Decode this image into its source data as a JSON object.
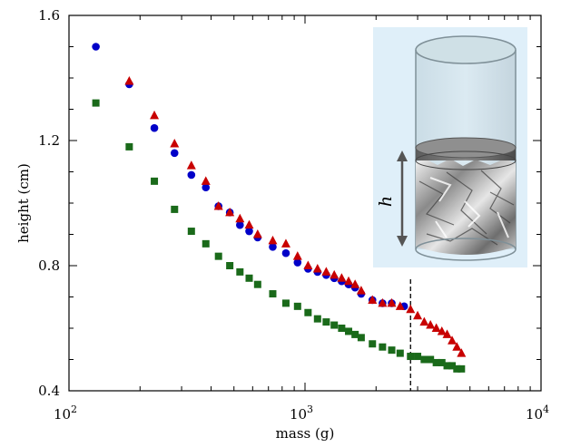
{
  "chart_data": {
    "type": "scatter",
    "xscale": "log",
    "xlim": [
      100,
      10000
    ],
    "ylim": [
      0.4,
      1.6
    ],
    "xlabel": "mass (g)",
    "ylabel": "height (cm)",
    "xticks": [
      100,
      1000,
      10000
    ],
    "xtick_labels": [
      {
        "base": "10",
        "exp": "2"
      },
      {
        "base": "10",
        "exp": "3"
      },
      {
        "base": "10",
        "exp": "4"
      }
    ],
    "yticks": [
      0.4,
      0.8,
      1.2,
      1.6
    ],
    "ytick_labels": [
      "0.4",
      "0.8",
      "1.2",
      "1.6"
    ],
    "vline_x": 2800,
    "series": [
      {
        "marker": "circle",
        "color": "#0000c8",
        "points": [
          [
            130,
            1.5
          ],
          [
            180,
            1.38
          ],
          [
            230,
            1.24
          ],
          [
            280,
            1.16
          ],
          [
            330,
            1.09
          ],
          [
            380,
            1.05
          ],
          [
            430,
            0.99
          ],
          [
            480,
            0.97
          ],
          [
            530,
            0.93
          ],
          [
            580,
            0.91
          ],
          [
            630,
            0.89
          ],
          [
            730,
            0.86
          ],
          [
            830,
            0.84
          ],
          [
            930,
            0.81
          ],
          [
            1030,
            0.79
          ],
          [
            1130,
            0.78
          ],
          [
            1230,
            0.77
          ],
          [
            1330,
            0.76
          ],
          [
            1430,
            0.75
          ],
          [
            1530,
            0.74
          ],
          [
            1630,
            0.73
          ],
          [
            1730,
            0.71
          ],
          [
            1930,
            0.69
          ],
          [
            2130,
            0.68
          ],
          [
            2330,
            0.68
          ],
          [
            2630,
            0.67
          ]
        ]
      },
      {
        "marker": "triangle",
        "color": "#c80000",
        "points": [
          [
            180,
            1.39
          ],
          [
            230,
            1.28
          ],
          [
            280,
            1.19
          ],
          [
            330,
            1.12
          ],
          [
            380,
            1.07
          ],
          [
            430,
            0.99
          ],
          [
            480,
            0.97
          ],
          [
            530,
            0.95
          ],
          [
            580,
            0.93
          ],
          [
            630,
            0.9
          ],
          [
            730,
            0.88
          ],
          [
            830,
            0.87
          ],
          [
            930,
            0.83
          ],
          [
            1030,
            0.8
          ],
          [
            1130,
            0.79
          ],
          [
            1230,
            0.78
          ],
          [
            1330,
            0.77
          ],
          [
            1430,
            0.76
          ],
          [
            1530,
            0.75
          ],
          [
            1630,
            0.74
          ],
          [
            1730,
            0.72
          ],
          [
            1930,
            0.69
          ],
          [
            2130,
            0.68
          ],
          [
            2330,
            0.68
          ],
          [
            2530,
            0.67
          ],
          [
            2800,
            0.66
          ],
          [
            3000,
            0.64
          ],
          [
            3200,
            0.62
          ],
          [
            3400,
            0.61
          ],
          [
            3600,
            0.6
          ],
          [
            3800,
            0.59
          ],
          [
            4000,
            0.58
          ],
          [
            4200,
            0.56
          ],
          [
            4400,
            0.54
          ],
          [
            4600,
            0.52
          ]
        ]
      },
      {
        "marker": "square",
        "color": "#1a6a1a",
        "points": [
          [
            130,
            1.32
          ],
          [
            180,
            1.18
          ],
          [
            230,
            1.07
          ],
          [
            280,
            0.98
          ],
          [
            330,
            0.91
          ],
          [
            380,
            0.87
          ],
          [
            430,
            0.83
          ],
          [
            480,
            0.8
          ],
          [
            530,
            0.78
          ],
          [
            580,
            0.76
          ],
          [
            630,
            0.74
          ],
          [
            730,
            0.71
          ],
          [
            830,
            0.68
          ],
          [
            930,
            0.67
          ],
          [
            1030,
            0.65
          ],
          [
            1130,
            0.63
          ],
          [
            1230,
            0.62
          ],
          [
            1330,
            0.61
          ],
          [
            1430,
            0.6
          ],
          [
            1530,
            0.59
          ],
          [
            1630,
            0.58
          ],
          [
            1730,
            0.57
          ],
          [
            1930,
            0.55
          ],
          [
            2130,
            0.54
          ],
          [
            2330,
            0.53
          ],
          [
            2530,
            0.52
          ],
          [
            2800,
            0.51
          ],
          [
            3000,
            0.51
          ],
          [
            3200,
            0.5
          ],
          [
            3400,
            0.5
          ],
          [
            3600,
            0.49
          ],
          [
            3800,
            0.49
          ],
          [
            4000,
            0.48
          ],
          [
            4200,
            0.48
          ],
          [
            4400,
            0.47
          ],
          [
            4600,
            0.47
          ]
        ]
      }
    ],
    "inset": {
      "label": "h",
      "background": "#dfeff9"
    }
  }
}
